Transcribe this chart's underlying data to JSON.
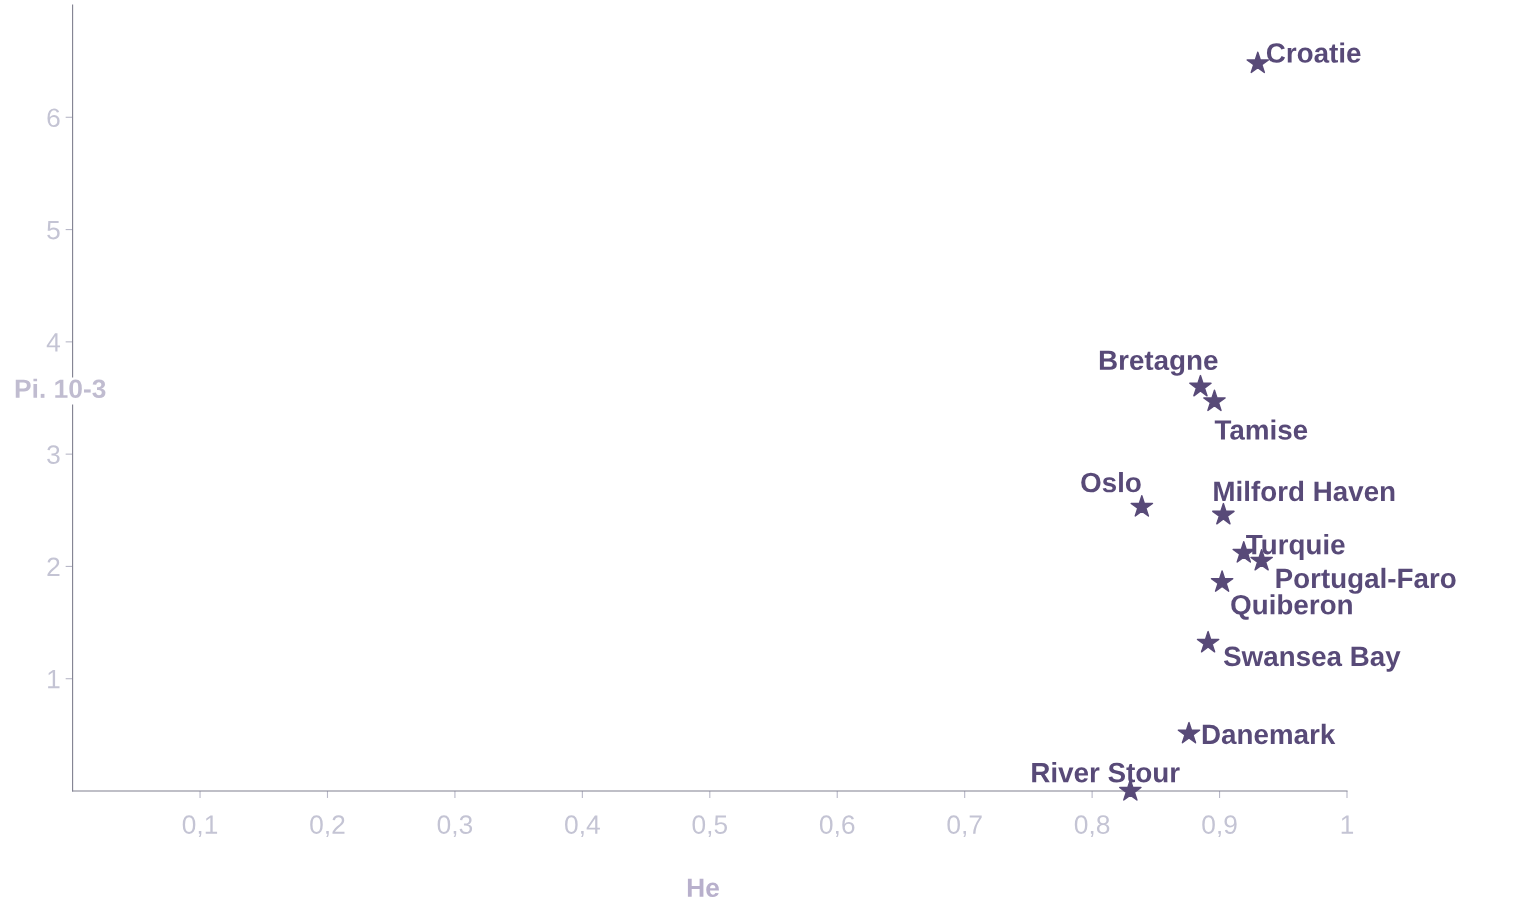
{
  "chart_data": {
    "type": "scatter",
    "xlabel": "He",
    "ylabel": "Pi. 10-3",
    "marker": "star",
    "grid": false,
    "legend": false,
    "xlim": [
      0,
      1
    ],
    "ylim": [
      0,
      7
    ],
    "xticks": [
      {
        "value": 0.1,
        "label": "0,1"
      },
      {
        "value": 0.2,
        "label": "0,2"
      },
      {
        "value": 0.3,
        "label": "0,3"
      },
      {
        "value": 0.4,
        "label": "0,4"
      },
      {
        "value": 0.5,
        "label": "0,5"
      },
      {
        "value": 0.6,
        "label": "0,6"
      },
      {
        "value": 0.7,
        "label": "0,7"
      },
      {
        "value": 0.8,
        "label": "0,8"
      },
      {
        "value": 0.9,
        "label": "0,9"
      },
      1
    ],
    "yticks": [
      1,
      2,
      3,
      4,
      5,
      6
    ],
    "series": [
      {
        "color": "#584a78",
        "x": [
          0.93,
          0.885,
          0.896,
          0.839,
          0.903,
          0.919,
          0.933,
          0.902,
          0.891,
          0.876,
          0.83
        ],
        "values": [
          6.48,
          3.6,
          3.47,
          2.53,
          2.46,
          2.12,
          2.05,
          1.86,
          1.32,
          0.51,
          0.0
        ]
      }
    ],
    "annotations": [
      {
        "text": "Croatie",
        "x": 0.93,
        "y": 6.48
      },
      {
        "text": "Bretagne",
        "x": 0.885,
        "y": 3.6
      },
      {
        "text": "Tamise",
        "x": 0.896,
        "y": 3.47
      },
      {
        "text": "Oslo",
        "x": 0.839,
        "y": 2.53
      },
      {
        "text": "Milford Haven",
        "x": 0.903,
        "y": 2.46
      },
      {
        "text": "Turquie",
        "x": 0.919,
        "y": 2.12
      },
      {
        "text": "Portugal-Faro",
        "x": 0.933,
        "y": 2.05
      },
      {
        "text": "Quiberon",
        "x": 0.902,
        "y": 1.86
      },
      {
        "text": "Swansea Bay",
        "x": 0.891,
        "y": 1.32
      },
      {
        "text": "Danemark",
        "x": 0.876,
        "y": 0.51
      },
      {
        "text": "River Stour",
        "x": 0.83,
        "y": 0.0
      }
    ]
  }
}
